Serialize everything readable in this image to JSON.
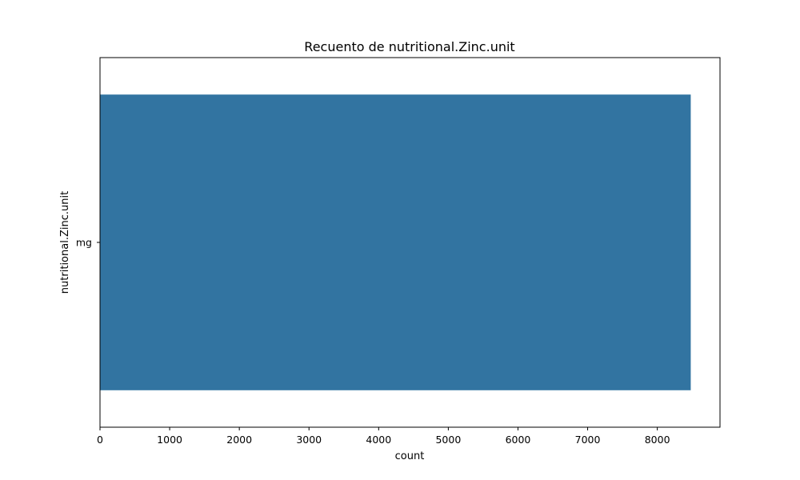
{
  "chart_data": {
    "type": "bar",
    "orientation": "horizontal",
    "title": "Recuento de nutritional.Zinc.unit",
    "xlabel": "count",
    "ylabel": "nutritional.Zinc.unit",
    "categories": [
      "mg"
    ],
    "values": [
      8480
    ],
    "xlim": [
      0,
      8900
    ],
    "xticks": [
      0,
      1000,
      2000,
      3000,
      4000,
      5000,
      6000,
      7000,
      8000
    ],
    "grid": false,
    "bar_color": "#3274a1"
  }
}
